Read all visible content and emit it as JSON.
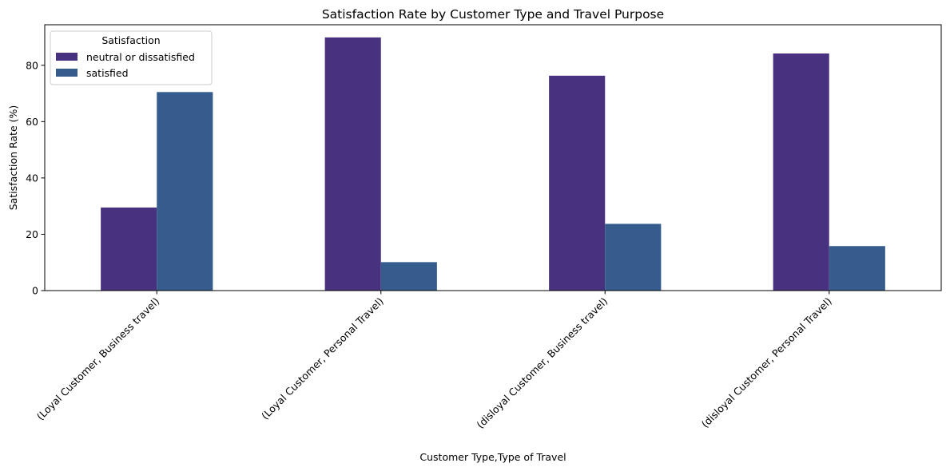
{
  "chart_data": {
    "type": "bar",
    "title": "Satisfaction Rate by Customer Type and Travel Purpose",
    "xlabel": "Customer Type,Type of Travel",
    "ylabel": "Satisfaction Rate (%)",
    "categories": [
      "(Loyal Customer, Business travel)",
      "(Loyal Customer, Personal Travel)",
      "(disloyal Customer, Business travel)",
      "(disloyal Customer, Personal Travel)"
    ],
    "series": [
      {
        "name": "neutral or dissatisfied",
        "color": "#483280",
        "values": [
          29.5,
          89.9,
          76.3,
          84.2
        ]
      },
      {
        "name": "satisfied",
        "color": "#355c8c",
        "values": [
          70.5,
          10.1,
          23.7,
          15.8
        ]
      }
    ],
    "ylim": [
      0,
      94.4
    ],
    "yticks": [
      0,
      20,
      40,
      60,
      80
    ],
    "grid": false,
    "legend": {
      "title": "Satisfaction",
      "position": "top-left"
    }
  }
}
